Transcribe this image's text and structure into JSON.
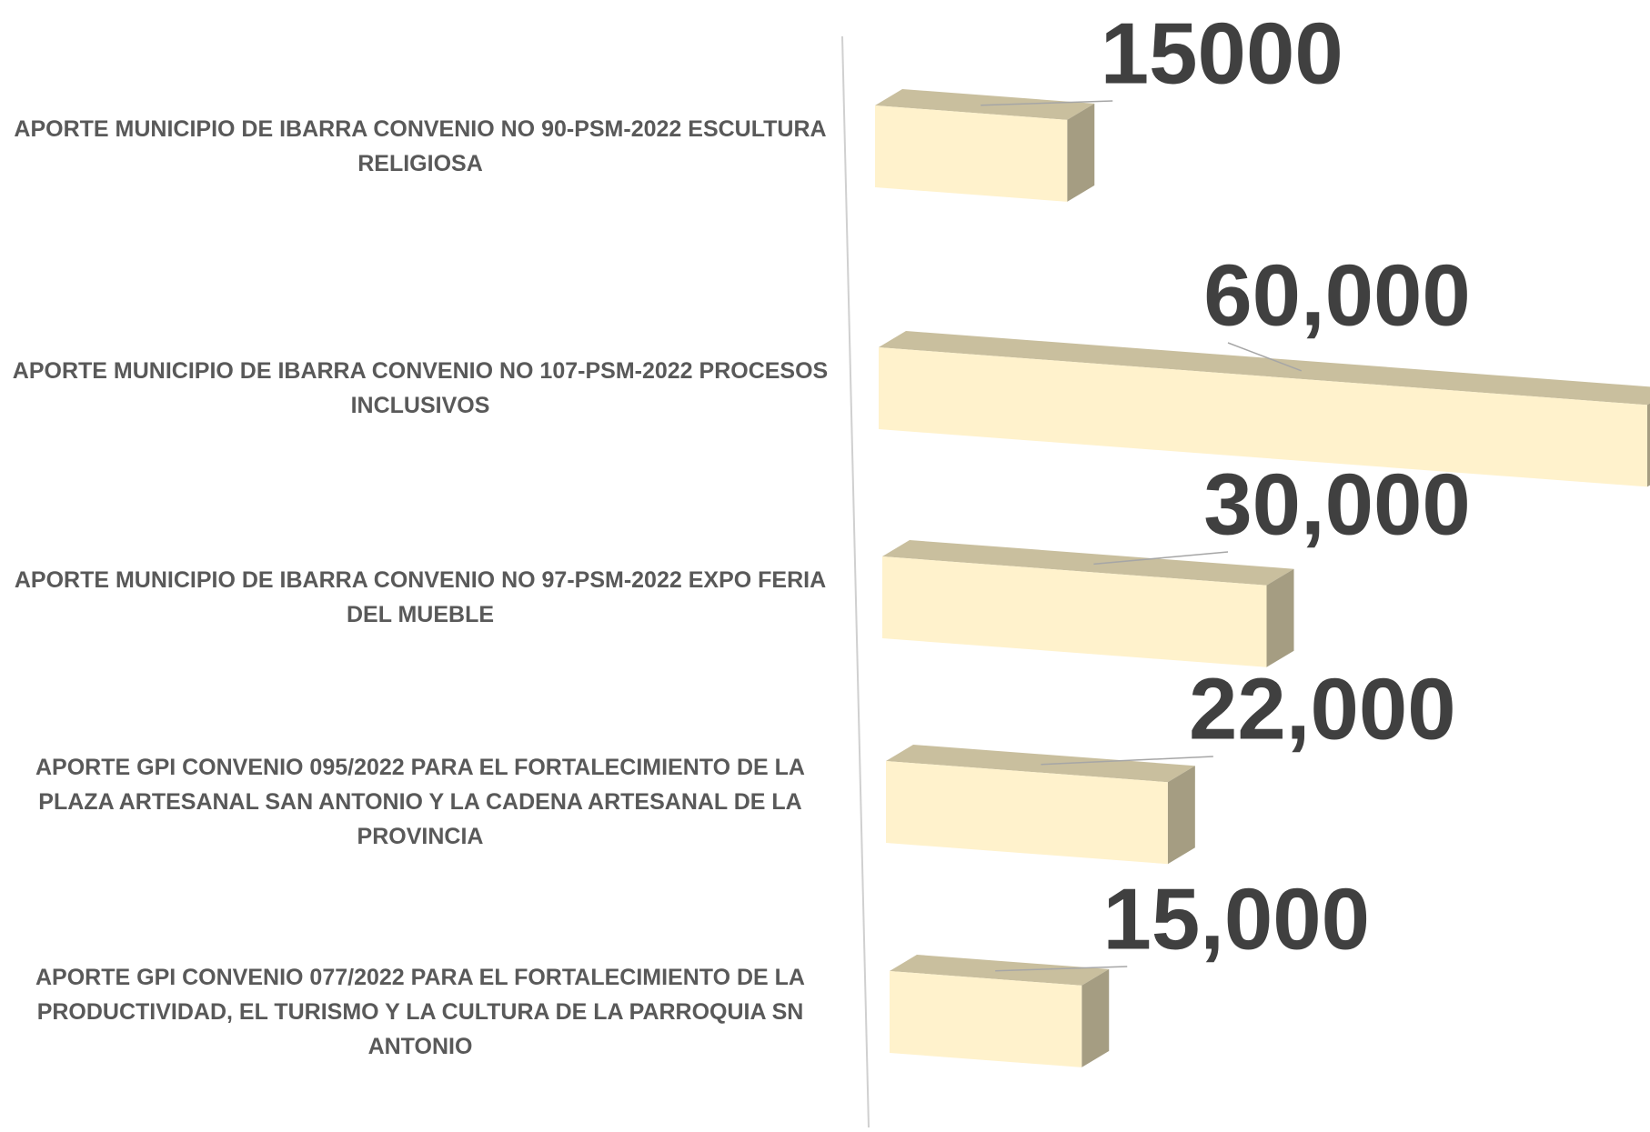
{
  "chart_data": {
    "type": "bar3d_horizontal",
    "categories": [
      "APORTE MUNICIPIO DE IBARRA CONVENIO NO 90-PSM-2022 ESCULTURA RELIGIOSA",
      "APORTE MUNICIPIO DE IBARRA CONVENIO NO 107-PSM-2022 PROCESOS INCLUSIVOS",
      "APORTE MUNICIPIO DE IBARRA CONVENIO NO 97-PSM-2022 EXPO FERIA DEL MUEBLE",
      "APORTE GPI CONVENIO 095/2022 PARA EL FORTALECIMIENTO DE LA PLAZA ARTESANAL SAN ANTONIO Y LA CADENA ARTESANAL DE LA PROVINCIA",
      "APORTE GPI CONVENIO 077/2022 PARA EL FORTALECIMIENTO DE LA PRODUCTIVIDAD, EL TURISMO Y LA CULTURA DE LA PARROQUIA  SN ANTONIO"
    ],
    "values": [
      15000,
      60000,
      30000,
      22000,
      15000
    ],
    "value_labels": [
      "15000",
      "60,000",
      "30,000",
      "22,000",
      "15,000"
    ],
    "color": "#fff2cc",
    "xlim": [
      0,
      60000
    ]
  }
}
